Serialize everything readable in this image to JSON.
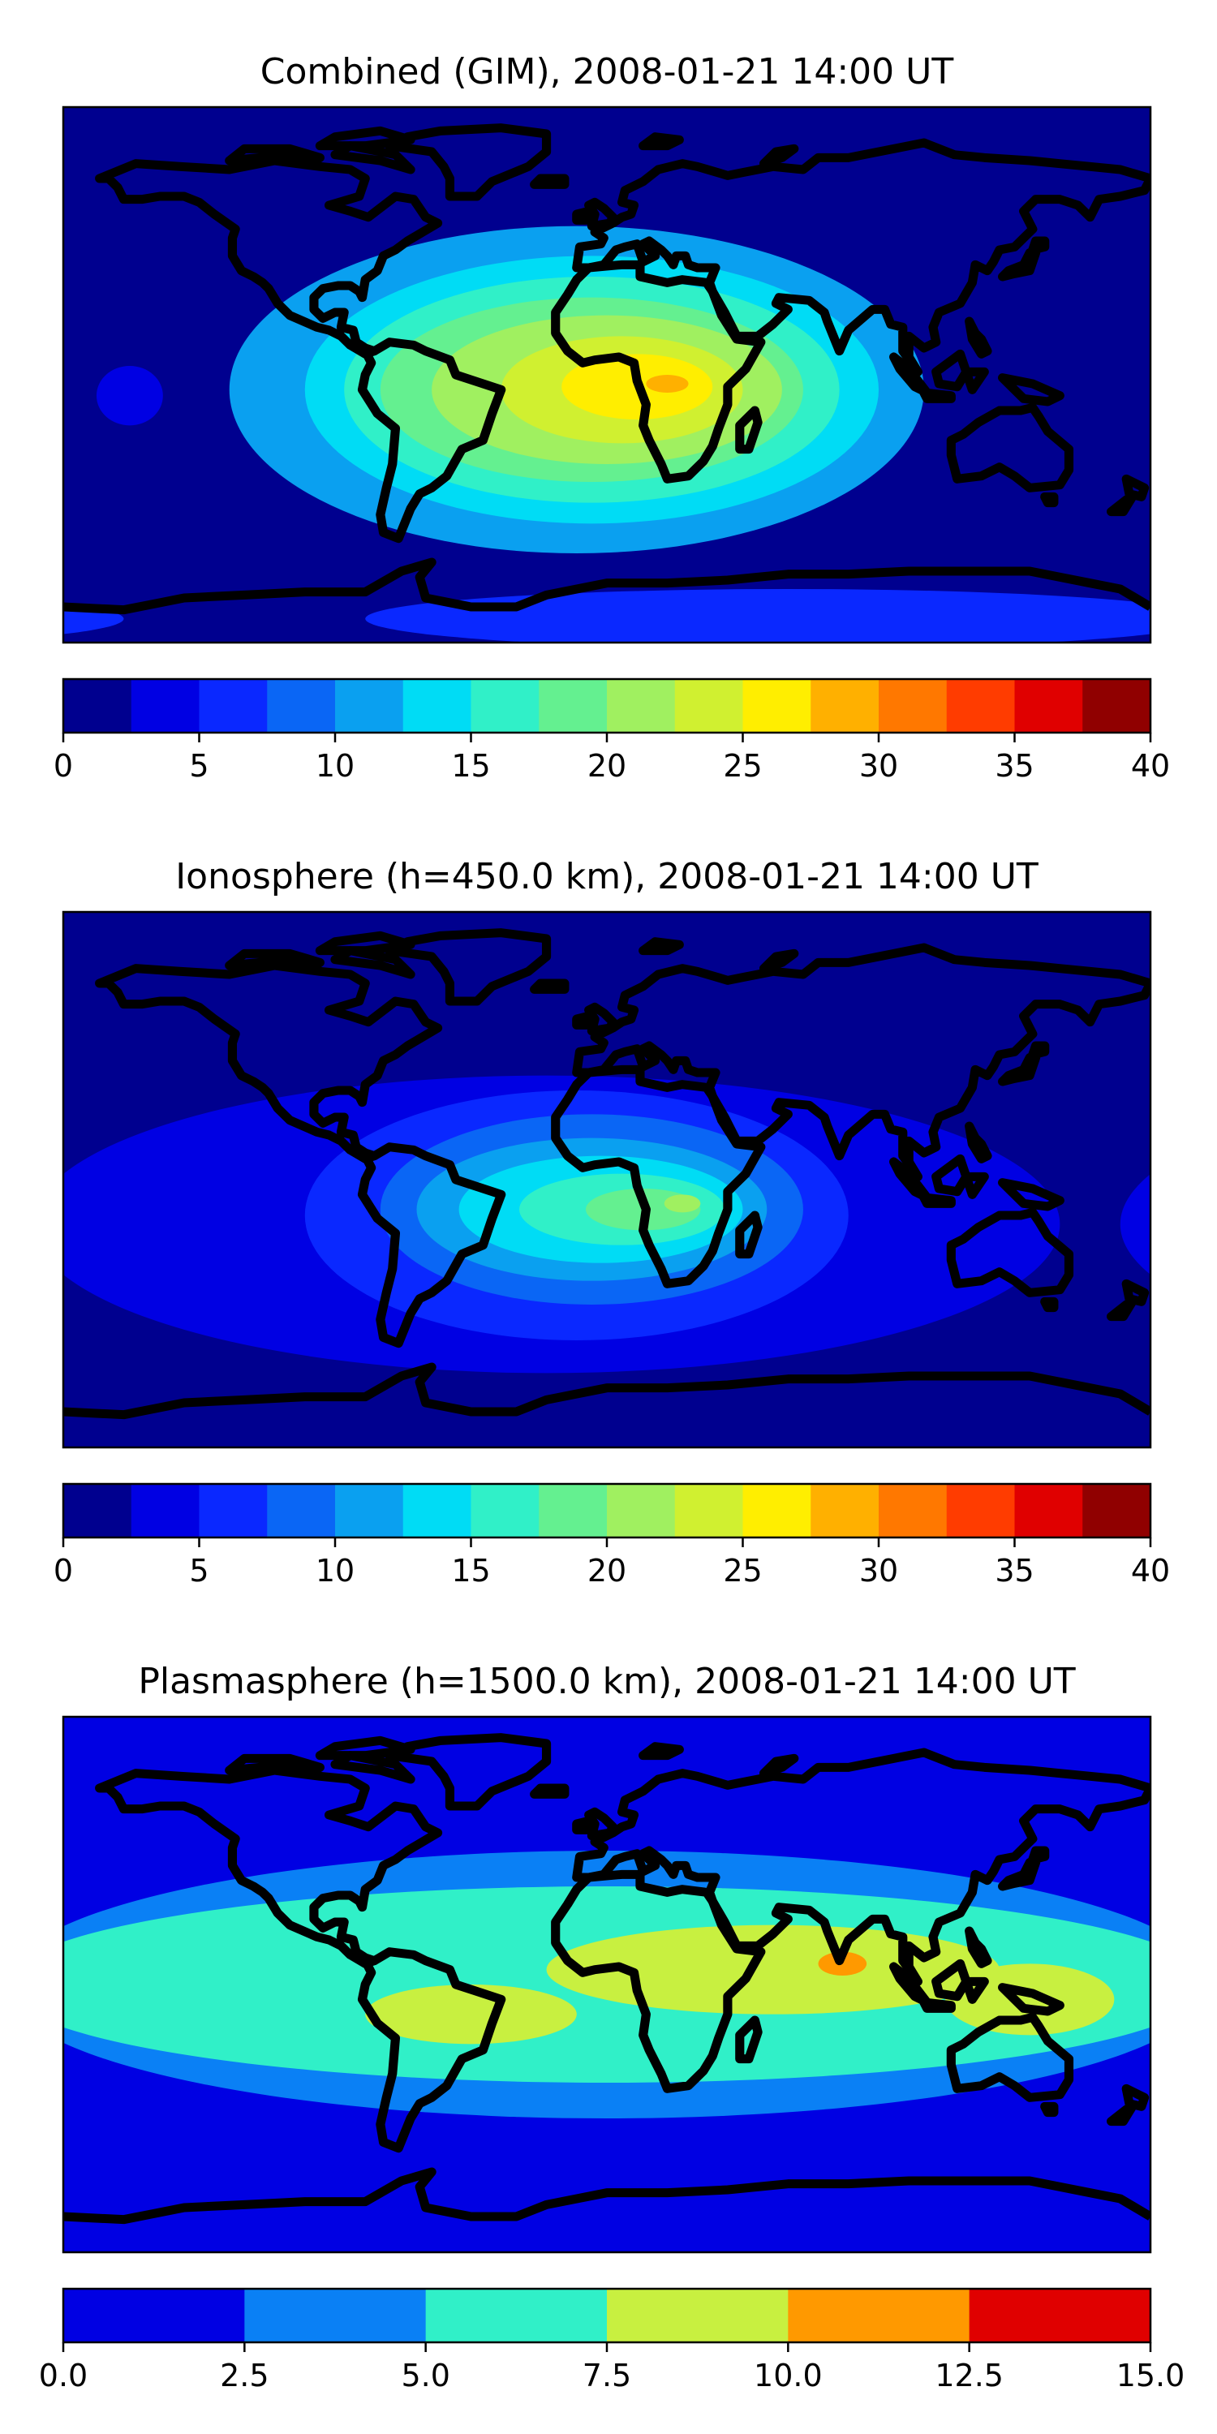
{
  "chart_data": [
    {
      "type": "heatmap",
      "title": "Combined (GIM), 2008-01-21 14:00 UT",
      "colorbar": {
        "levels": [
          0,
          2.5,
          5,
          7.5,
          10,
          12.5,
          15,
          17.5,
          20,
          22.5,
          25,
          27.5,
          30,
          32.5,
          35,
          37.5,
          40
        ],
        "ticks": [
          0,
          5,
          10,
          15,
          20,
          25,
          30,
          35,
          40
        ],
        "tick_labels": [
          "0",
          "5",
          "10",
          "15",
          "20",
          "25",
          "30",
          "35",
          "40"
        ],
        "colors": [
          "#00008f",
          "#0000e3",
          "#0a28ff",
          "#0a66f5",
          "#0aa0f0",
          "#00dcf5",
          "#30f0c8",
          "#64f090",
          "#a0f060",
          "#d0f030",
          "#ffee00",
          "#ffb000",
          "#ff7800",
          "#ff3c00",
          "#e00000",
          "#900000"
        ]
      },
      "field_blobs": [
        {
          "lon": -10,
          "lat": -5,
          "rlon": 115,
          "rlat": 55,
          "value": 11
        },
        {
          "lon": -5,
          "lat": -5,
          "rlon": 95,
          "rlat": 45,
          "value": 13.5
        },
        {
          "lon": -5,
          "lat": -5,
          "rlon": 82,
          "rlat": 38,
          "value": 16
        },
        {
          "lon": -5,
          "lat": -5,
          "rlon": 70,
          "rlat": 31,
          "value": 18.5
        },
        {
          "lon": 0,
          "lat": -5,
          "rlon": 58,
          "rlat": 25,
          "value": 21
        },
        {
          "lon": 5,
          "lat": -5,
          "rlon": 40,
          "rlat": 18,
          "value": 23.5
        },
        {
          "lon": 10,
          "lat": -4,
          "rlon": 25,
          "rlat": 11,
          "value": 26
        },
        {
          "lon": 20,
          "lat": -3,
          "rlon": 7,
          "rlat": 3,
          "value": 28.5
        },
        {
          "lon": -158,
          "lat": -7,
          "rlon": 11,
          "rlat": 10,
          "value": 3.5
        },
        {
          "lon": 60,
          "lat": -82,
          "rlon": 140,
          "rlat": 10,
          "value": 6
        }
      ]
    },
    {
      "type": "heatmap",
      "title": "Ionosphere  (h=450.0 km), 2008-01-21 14:00 UT",
      "colorbar": {
        "levels": [
          0,
          2.5,
          5,
          7.5,
          10,
          12.5,
          15,
          17.5,
          20,
          22.5,
          25,
          27.5,
          30,
          32.5,
          35,
          37.5,
          40
        ],
        "ticks": [
          0,
          5,
          10,
          15,
          20,
          25,
          30,
          35,
          40
        ],
        "tick_labels": [
          "0",
          "5",
          "10",
          "15",
          "20",
          "25",
          "30",
          "35",
          "40"
        ],
        "colors": [
          "#00008f",
          "#0000e3",
          "#0a28ff",
          "#0a66f5",
          "#0aa0f0",
          "#00dcf5",
          "#30f0c8",
          "#64f090",
          "#a0f060",
          "#d0f030",
          "#ffee00",
          "#ffb000",
          "#ff7800",
          "#ff3c00",
          "#e00000",
          "#900000"
        ]
      },
      "field_blobs": [
        {
          "lon": -20,
          "lat": -15,
          "rlon": 170,
          "rlat": 50,
          "value": 3.5
        },
        {
          "lon": -10,
          "lat": -12,
          "rlon": 90,
          "rlat": 42,
          "value": 6
        },
        {
          "lon": -5,
          "lat": -10,
          "rlon": 70,
          "rlat": 32,
          "value": 8.5
        },
        {
          "lon": -5,
          "lat": -10,
          "rlon": 58,
          "rlat": 24,
          "value": 11
        },
        {
          "lon": -2,
          "lat": -10,
          "rlon": 47,
          "rlat": 18,
          "value": 13.5
        },
        {
          "lon": 5,
          "lat": -10,
          "rlon": 34,
          "rlat": 12,
          "value": 16
        },
        {
          "lon": 12,
          "lat": -10,
          "rlon": 19,
          "rlat": 7,
          "value": 18.5
        },
        {
          "lon": 25,
          "lat": -8,
          "rlon": 6,
          "rlat": 3,
          "value": 21
        },
        {
          "lon": 90,
          "lat": 35,
          "rlon": 80,
          "rlat": 35,
          "value": 1
        }
      ]
    },
    {
      "type": "heatmap",
      "title": "Plasmasphere (h=1500.0 km), 2008-01-21 14:00 UT",
      "colorbar": {
        "levels": [
          0.0,
          2.5,
          5.0,
          7.5,
          10.0,
          12.5,
          15.0
        ],
        "ticks": [
          0.0,
          2.5,
          5.0,
          7.5,
          10.0,
          12.5,
          15.0
        ],
        "tick_labels": [
          "0.0",
          "2.5",
          "5.0",
          "7.5",
          "10.0",
          "12.5",
          "15.0"
        ],
        "colors": [
          "#0000e3",
          "#0a80f5",
          "#30f0c8",
          "#c8f040",
          "#ff9900",
          "#e00000"
        ]
      },
      "field_blobs": [
        {
          "lon": 0,
          "lat": 0,
          "rlon": 200,
          "rlat": 45,
          "value": 3.8
        },
        {
          "lon": 0,
          "lat": 0,
          "rlon": 200,
          "rlat": 33,
          "value": 6.2
        },
        {
          "lon": 55,
          "lat": 5,
          "rlon": 75,
          "rlat": 15,
          "value": 8.7
        },
        {
          "lon": -45,
          "lat": -10,
          "rlon": 35,
          "rlat": 10,
          "value": 8.7
        },
        {
          "lon": 140,
          "lat": -5,
          "rlon": 28,
          "rlat": 12,
          "value": 8.7
        },
        {
          "lon": 78,
          "lat": 7,
          "rlon": 8,
          "rlat": 4,
          "value": 11.2
        },
        {
          "lon": -165,
          "lat": -5,
          "rlon": 12,
          "rlat": 10,
          "value": 3.8
        }
      ]
    }
  ]
}
